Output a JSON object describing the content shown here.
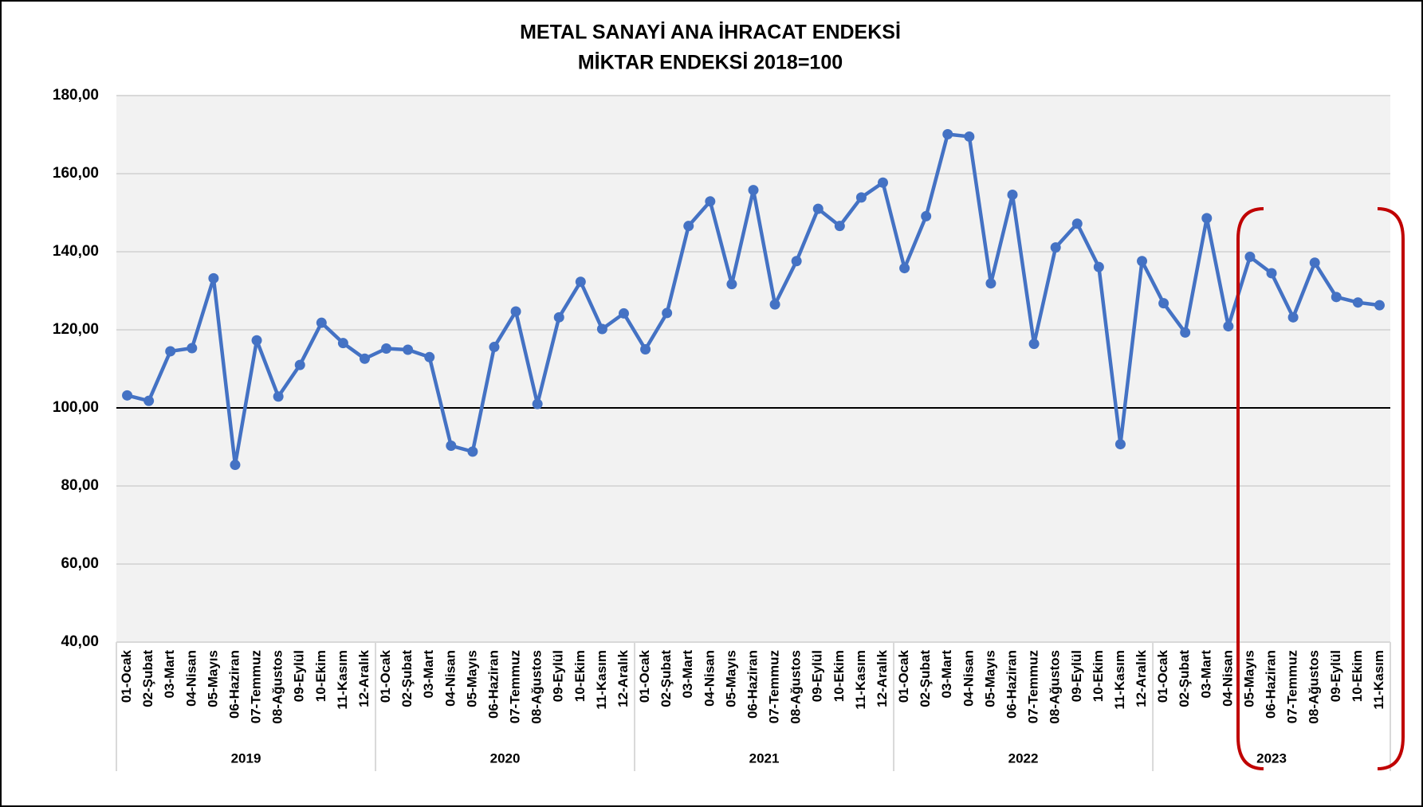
{
  "chart_data": {
    "type": "line",
    "title": "METAL SANAYİ ANA İHRACAT ENDEKSİ",
    "subtitle": "MİKTAR ENDEKSİ 2018=100",
    "groups": [
      {
        "label": "2019",
        "categories": [
          "01-Ocak",
          "02-Şubat",
          "03-Mart",
          "04-Nisan",
          "05-Mayıs",
          "06-Haziran",
          "07-Temmuz",
          "08-Ağustos",
          "09-Eylül",
          "10-Ekim",
          "11-Kasım",
          "12-Aralık"
        ]
      },
      {
        "label": "2020",
        "categories": [
          "01-Ocak",
          "02-Şubat",
          "03-Mart",
          "04-Nisan",
          "05-Mayıs",
          "06-Haziran",
          "07-Temmuz",
          "08-Ağustos",
          "09-Eylül",
          "10-Ekim",
          "11-Kasım",
          "12-Aralık"
        ]
      },
      {
        "label": "2021",
        "categories": [
          "01-Ocak",
          "02-Şubat",
          "03-Mart",
          "04-Nisan",
          "05-Mayıs",
          "06-Haziran",
          "07-Temmuz",
          "08-Ağustos",
          "09-Eylül",
          "10-Ekim",
          "11-Kasım",
          "12-Aralık"
        ]
      },
      {
        "label": "2022",
        "categories": [
          "01-Ocak",
          "02-Şubat",
          "03-Mart",
          "04-Nisan",
          "05-Mayıs",
          "06-Haziran",
          "07-Temmuz",
          "08-Ağustos",
          "09-Eylül",
          "10-Ekim",
          "11-Kasım",
          "12-Aralık"
        ]
      },
      {
        "label": "2023",
        "categories": [
          "01-Ocak",
          "02-Şubat",
          "03-Mart",
          "04-Nisan",
          "05-Mayıs",
          "06-Haziran",
          "07-Temmuz",
          "08-Ağustos",
          "09-Eylül",
          "10-Ekim",
          "11-Kasım"
        ]
      }
    ],
    "values": [
      103.2,
      101.8,
      114.5,
      115.3,
      133.2,
      85.4,
      117.3,
      102.9,
      111.0,
      121.8,
      116.6,
      112.6,
      115.2,
      114.9,
      113.0,
      90.3,
      88.8,
      115.6,
      124.7,
      101.0,
      123.2,
      132.3,
      120.2,
      124.2,
      115.0,
      124.3,
      146.6,
      152.9,
      131.7,
      155.8,
      126.5,
      137.6,
      151.0,
      146.6,
      153.9,
      157.7,
      135.8,
      149.1,
      170.1,
      169.5,
      131.9,
      154.6,
      116.4,
      141.1,
      147.2,
      136.1,
      90.7,
      137.6,
      126.8,
      119.3,
      148.6,
      120.9,
      138.7,
      134.5,
      123.2,
      137.2,
      128.4,
      127.0,
      126.3
    ],
    "color": "#4472c4",
    "ylim": [
      40,
      180
    ],
    "yticks": [
      {
        "value": 40,
        "label": "40,00"
      },
      {
        "value": 60,
        "label": "60,00"
      },
      {
        "value": 80,
        "label": "80,00"
      },
      {
        "value": 100,
        "label": "100,00"
      },
      {
        "value": 120,
        "label": "120,00"
      },
      {
        "value": 140,
        "label": "140,00"
      },
      {
        "value": 160,
        "label": "160,00"
      },
      {
        "value": 180,
        "label": "180,00"
      }
    ],
    "reference_line": 100,
    "grid": true
  }
}
